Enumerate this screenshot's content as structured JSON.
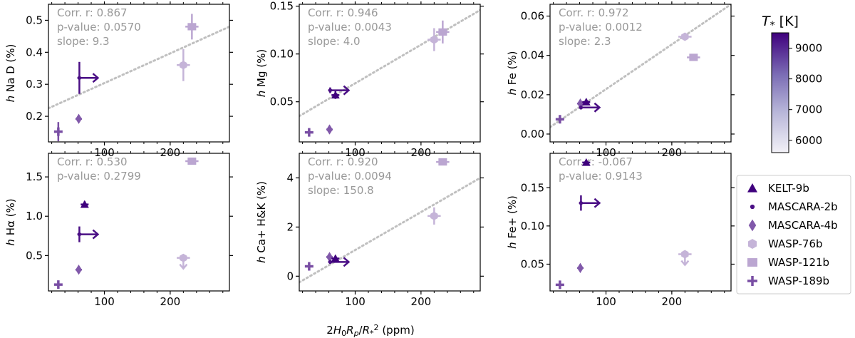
{
  "chart_data": {
    "type": "scatter",
    "shared_xlabel": "2H0Rp/R*2 (ppm)",
    "x_ticks": [
      100,
      200
    ],
    "x_range": [
      15,
      290
    ],
    "colorbar": {
      "label": "T* [K]",
      "range": [
        5600,
        9500
      ],
      "ticks": [
        6000,
        7000,
        8000,
        9000
      ],
      "color_low": "#f2f1f7",
      "color_high": "#3f007d"
    },
    "legend": [
      {
        "name": "KELT-9b",
        "marker": "triangle",
        "temp": 9600
      },
      {
        "name": "MASCARA-2b",
        "marker": "dot",
        "temp": 9200
      },
      {
        "name": "MASCARA-4b",
        "marker": "diamond",
        "temp": 7800
      },
      {
        "name": "WASP-76b",
        "marker": "hexagon",
        "temp": 6300
      },
      {
        "name": "WASP-121b",
        "marker": "square",
        "temp": 6500
      },
      {
        "name": "WASP-189b",
        "marker": "plus",
        "temp": 8000
      }
    ],
    "panels": [
      {
        "ylabel": "h Na D (%)",
        "ylim": [
          0.12,
          0.55
        ],
        "yticks": [
          0.2,
          0.3,
          0.4,
          0.5
        ],
        "yfmt": 1,
        "stats": {
          "r": "Corr. r: 0.867",
          "p": "p-value: 0.0570",
          "slope": "slope: 9.3"
        },
        "fit": [
          [
            15,
            0.225
          ],
          [
            290,
            0.48
          ]
        ],
        "points": [
          {
            "planet": "WASP-189b",
            "x": 30,
            "y": 0.152,
            "xerr": 4,
            "yerr": 0.03
          },
          {
            "planet": "MASCARA-4b",
            "x": 61,
            "y": 0.192,
            "xerr": 5,
            "yerr": 0.01
          },
          {
            "planet": "MASCARA-2b",
            "x": 62,
            "y": 0.32,
            "xerr": 3,
            "yerr": 0.05,
            "lower_limit_x": true
          },
          {
            "planet": "WASP-76b",
            "x": 220,
            "y": 0.36,
            "xerr": 10,
            "yerr": 0.05
          },
          {
            "planet": "WASP-121b",
            "x": 233,
            "y": 0.48,
            "xerr": 10,
            "yerr": 0.04
          }
        ]
      },
      {
        "ylabel": "h Mg (%)",
        "ylim": [
          0.008,
          0.152
        ],
        "yticks": [
          0.05,
          0.1,
          0.15
        ],
        "yfmt": 2,
        "stats": {
          "r": "Corr. r: 0.946",
          "p": "p-value: 0.0043",
          "slope": "slope: 4.0"
        },
        "fit": [
          [
            15,
            0.035
          ],
          [
            290,
            0.146
          ]
        ],
        "points": [
          {
            "planet": "WASP-189b",
            "x": 30,
            "y": 0.018,
            "xerr": 4,
            "yerr": 0.002
          },
          {
            "planet": "MASCARA-4b",
            "x": 61,
            "y": 0.021,
            "xerr": 5,
            "yerr": 0.003
          },
          {
            "planet": "MASCARA-2b",
            "x": 62,
            "y": 0.062,
            "xerr": 3,
            "yerr": 0.003,
            "lower_limit_x": true
          },
          {
            "planet": "KELT-9b",
            "x": 70,
            "y": 0.057,
            "xerr": 6,
            "yerr": 0.004
          },
          {
            "planet": "WASP-76b",
            "x": 220,
            "y": 0.115,
            "xerr": 10,
            "yerr": 0.012
          },
          {
            "planet": "WASP-121b",
            "x": 233,
            "y": 0.123,
            "xerr": 10,
            "yerr": 0.012
          }
        ]
      },
      {
        "ylabel": "h Fe (%)",
        "ylim": [
          -0.004,
          0.066
        ],
        "yticks": [
          0.0,
          0.02,
          0.04,
          0.06
        ],
        "yfmt": 2,
        "stats": {
          "r": "Corr. r: 0.972",
          "p": "p-value: 0.0012",
          "slope": "slope: 2.3"
        },
        "fit": [
          [
            15,
            0.0035
          ],
          [
            290,
            0.066
          ]
        ],
        "points": [
          {
            "planet": "WASP-189b",
            "x": 30,
            "y": 0.0075,
            "xerr": 4,
            "yerr": 0.0015
          },
          {
            "planet": "MASCARA-4b",
            "x": 61,
            "y": 0.0155,
            "xerr": 5,
            "yerr": 0.001
          },
          {
            "planet": "MASCARA-2b",
            "x": 62,
            "y": 0.0135,
            "xerr": 3,
            "yerr": 0.001,
            "lower_limit_x": true
          },
          {
            "planet": "KELT-9b",
            "x": 70,
            "y": 0.0163,
            "xerr": 6,
            "yerr": 0.001
          },
          {
            "planet": "WASP-76b",
            "x": 220,
            "y": 0.0495,
            "xerr": 10,
            "yerr": 0.0015
          },
          {
            "planet": "WASP-121b",
            "x": 233,
            "y": 0.039,
            "xerr": 10,
            "yerr": 0.0015
          }
        ]
      },
      {
        "ylabel": "h Hα (%)",
        "ylim": [
          0.05,
          1.8
        ],
        "yticks": [
          0.5,
          1.0,
          1.5
        ],
        "yfmt": 1,
        "stats": {
          "r": "Corr. r: 0.530",
          "p": "p-value: 0.2799",
          "slope": ""
        },
        "fit": null,
        "points": [
          {
            "planet": "WASP-189b",
            "x": 30,
            "y": 0.13,
            "xerr": 4,
            "yerr": 0.03
          },
          {
            "planet": "MASCARA-4b",
            "x": 61,
            "y": 0.32,
            "xerr": 5,
            "yerr": 0.04
          },
          {
            "planet": "MASCARA-2b",
            "x": 62,
            "y": 0.77,
            "xerr": 3,
            "yerr": 0.1,
            "lower_limit_x": true
          },
          {
            "planet": "KELT-9b",
            "x": 70,
            "y": 1.15,
            "xerr": 6,
            "yerr": 0.04
          },
          {
            "planet": "WASP-76b",
            "x": 220,
            "y": 0.47,
            "xerr": 10,
            "yerr": 0.02,
            "upper_limit_y": true
          },
          {
            "planet": "WASP-121b",
            "x": 233,
            "y": 1.7,
            "xerr": 10,
            "yerr": 0.02
          }
        ]
      },
      {
        "ylabel": "h Ca+ H&K (%)",
        "ylim": [
          -0.6,
          5.0
        ],
        "yticks": [
          0,
          2,
          4
        ],
        "yfmt": 0,
        "stats": {
          "r": "Corr. r: 0.920",
          "p": "p-value: 0.0094",
          "slope": "slope: 150.8"
        },
        "fit": [
          [
            15,
            -0.25
          ],
          [
            290,
            4.0
          ]
        ],
        "points": [
          {
            "planet": "WASP-189b",
            "x": 30,
            "y": 0.4,
            "xerr": 4,
            "yerr": 0.15
          },
          {
            "planet": "MASCARA-4b",
            "x": 61,
            "y": 0.78,
            "xerr": 5,
            "yerr": 0.1
          },
          {
            "planet": "MASCARA-2b",
            "x": 62,
            "y": 0.58,
            "xerr": 3,
            "yerr": 0.08,
            "lower_limit_x": true
          },
          {
            "planet": "KELT-9b",
            "x": 70,
            "y": 0.72,
            "xerr": 6,
            "yerr": 0.12
          },
          {
            "planet": "WASP-76b",
            "x": 220,
            "y": 2.45,
            "xerr": 10,
            "yerr": 0.35
          },
          {
            "planet": "WASP-121b",
            "x": 233,
            "y": 4.65,
            "xerr": 10,
            "yerr": 0.08
          }
        ]
      },
      {
        "ylabel": "h Fe+ (%)",
        "ylim": [
          0.015,
          0.195
        ],
        "yticks": [
          0.05,
          0.1,
          0.15
        ],
        "yfmt": 2,
        "stats": {
          "r": "Corr. r: -0.067",
          "p": "p-value: 0.9143",
          "slope": ""
        },
        "fit": null,
        "points": [
          {
            "planet": "WASP-189b",
            "x": 30,
            "y": 0.023,
            "xerr": 4,
            "yerr": 0.002
          },
          {
            "planet": "MASCARA-4b",
            "x": 61,
            "y": 0.045,
            "xerr": 5,
            "yerr": 0.003
          },
          {
            "planet": "MASCARA-2b",
            "x": 62,
            "y": 0.13,
            "xerr": 3,
            "yerr": 0.01,
            "lower_limit_x": true
          },
          {
            "planet": "KELT-9b",
            "x": 70,
            "y": 0.183,
            "xerr": 6,
            "yerr": 0.002
          },
          {
            "planet": "WASP-76b",
            "x": 220,
            "y": 0.063,
            "xerr": 10,
            "yerr": 0.004,
            "upper_limit_y": true
          }
        ]
      }
    ]
  }
}
